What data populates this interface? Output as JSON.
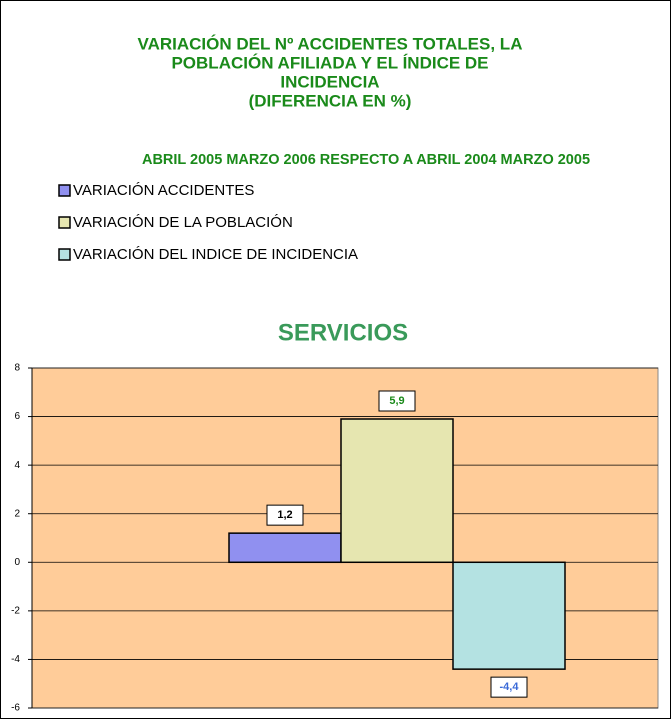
{
  "chart_data": {
    "type": "bar",
    "title": [
      "VARIACIÓN DEL Nº ACCIDENTES TOTALES, LA",
      "POBLACIÓN AFILIADA Y EL ÍNDICE DE",
      "INCIDENCIA",
      "(DIFERENCIA EN %)"
    ],
    "subtitle": "ABRIL 2005 MARZO 2006 RESPECTO A ABRIL 2004 MARZO 2005",
    "chart_title": "SERVICIOS",
    "series": [
      {
        "name": "VARIACIÓN ACCIDENTES",
        "color": "#9090f0",
        "label_color": "#000000",
        "values": [
          1.2
        ],
        "value_labels": [
          "1,2"
        ]
      },
      {
        "name": "VARIACIÓN DE LA POBLACIÓN",
        "color": "#e6e6b0",
        "label_color": "#1a8a1a",
        "values": [
          5.9
        ],
        "value_labels": [
          "5,9"
        ]
      },
      {
        "name": "VARIACIÓN DEL INDICE DE INCIDENCIA",
        "color": "#b4e2e2",
        "label_color": "#3a6ad8",
        "values": [
          -4.4
        ],
        "value_labels": [
          "-4,4"
        ]
      }
    ],
    "ylim": [
      -6,
      8
    ],
    "yticks": [
      -6,
      -4,
      -2,
      0,
      2,
      4,
      6,
      8
    ],
    "grid": true,
    "plot_background": "#ffcc99"
  }
}
